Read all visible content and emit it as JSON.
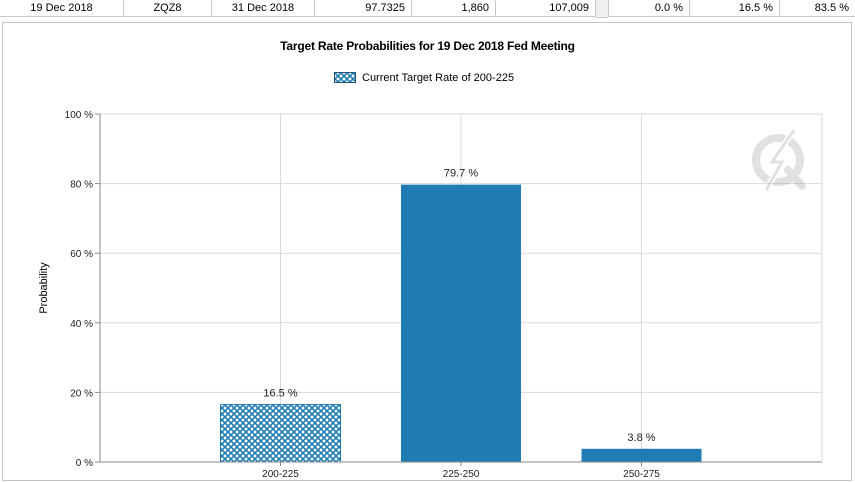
{
  "table": {
    "cells": [
      "19 Dec 2018",
      "ZQZ8",
      "31 Dec 2018",
      "97.7325",
      "1,860",
      "107,009",
      "0.0 %",
      "16.5 %",
      "83.5 %"
    ]
  },
  "chart_data": {
    "type": "bar",
    "title": "Target Rate Probabilities for 19 Dec 2018 Fed Meeting",
    "legend": "Current Target Rate of 200-225",
    "legend_placement": "top-center",
    "ylabel": "Probability",
    "categories": [
      "200-225",
      "225-250",
      "250-275"
    ],
    "values": [
      16.5,
      79.7,
      3.8
    ],
    "data_labels": [
      "16.5 %",
      "79.7 %",
      "3.8 %"
    ],
    "current_category": "200-225",
    "ylim": [
      0,
      100
    ],
    "yticks": [
      0,
      20,
      40,
      60,
      80,
      100
    ],
    "ytick_labels": [
      "0 %",
      "20 %",
      "40 %",
      "60 %",
      "80 %",
      "100 %"
    ],
    "grid": true,
    "colors": {
      "bar": "#1f7db4",
      "current_pattern": "#1f7db4",
      "grid": "#d9d9d9"
    }
  }
}
